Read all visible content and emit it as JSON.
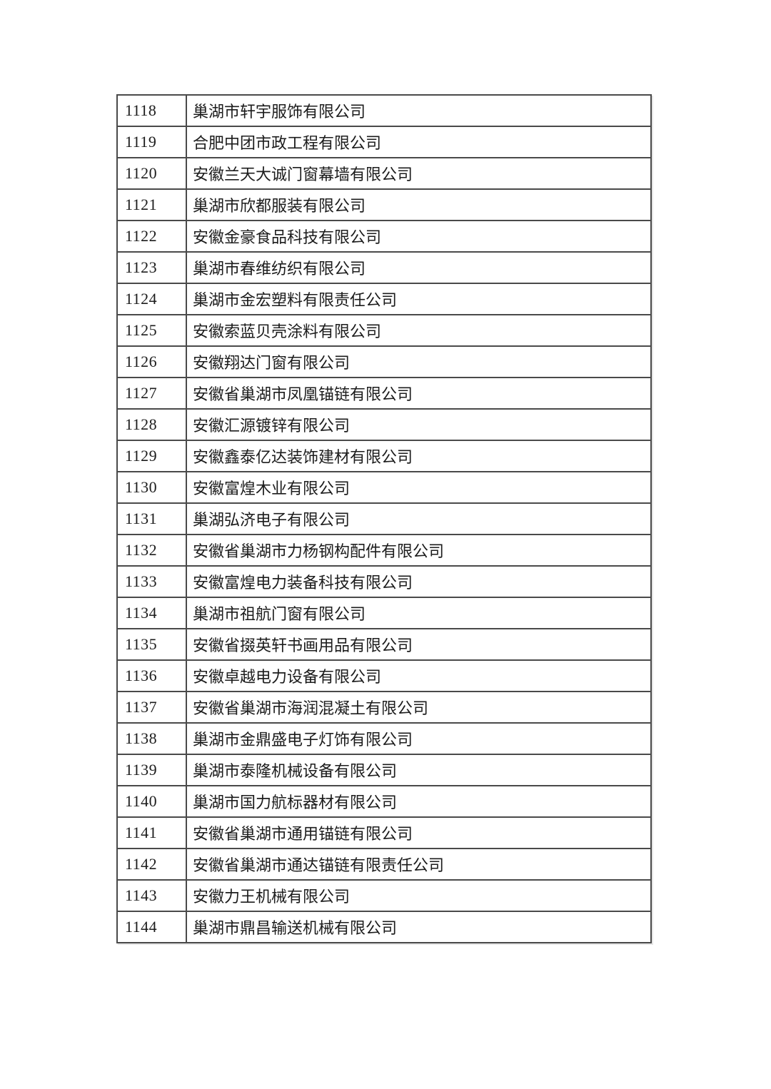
{
  "page": {
    "background": "#ffffff"
  },
  "table": {
    "border_color": "#4a4a4a",
    "text_color": "#1c1c1c",
    "rows": [
      {
        "no": "1118",
        "company": "巢湖市轩宇服饰有限公司"
      },
      {
        "no": "1119",
        "company": "合肥中团市政工程有限公司"
      },
      {
        "no": "1120",
        "company": "安徽兰天大诚门窗幕墙有限公司"
      },
      {
        "no": "1121",
        "company": "巢湖市欣都服装有限公司"
      },
      {
        "no": "1122",
        "company": "安徽金豪食品科技有限公司"
      },
      {
        "no": "1123",
        "company": "巢湖市春维纺织有限公司"
      },
      {
        "no": "1124",
        "company": "巢湖市金宏塑料有限责任公司"
      },
      {
        "no": "1125",
        "company": "安徽索蓝贝壳涂料有限公司"
      },
      {
        "no": "1126",
        "company": "安徽翔达门窗有限公司"
      },
      {
        "no": "1127",
        "company": "安徽省巢湖市凤凰锚链有限公司"
      },
      {
        "no": "1128",
        "company": "安徽汇源镀锌有限公司"
      },
      {
        "no": "1129",
        "company": "安徽鑫泰亿达装饰建材有限公司"
      },
      {
        "no": "1130",
        "company": "安徽富煌木业有限公司"
      },
      {
        "no": "1131",
        "company": "巢湖弘济电子有限公司"
      },
      {
        "no": "1132",
        "company": "安徽省巢湖市力杨钢构配件有限公司"
      },
      {
        "no": "1133",
        "company": "安徽富煌电力装备科技有限公司"
      },
      {
        "no": "1134",
        "company": "巢湖市祖航门窗有限公司"
      },
      {
        "no": "1135",
        "company": "安徽省掇英轩书画用品有限公司"
      },
      {
        "no": "1136",
        "company": "安徽卓越电力设备有限公司"
      },
      {
        "no": "1137",
        "company": "安徽省巢湖市海润混凝土有限公司"
      },
      {
        "no": "1138",
        "company": "巢湖市金鼎盛电子灯饰有限公司"
      },
      {
        "no": "1139",
        "company": "巢湖市泰隆机械设备有限公司"
      },
      {
        "no": "1140",
        "company": "巢湖市国力航标器材有限公司"
      },
      {
        "no": "1141",
        "company": "安徽省巢湖市通用锚链有限公司"
      },
      {
        "no": "1142",
        "company": "安徽省巢湖市通达锚链有限责任公司"
      },
      {
        "no": "1143",
        "company": "安徽力王机械有限公司"
      },
      {
        "no": "1144",
        "company": "巢湖市鼎昌输送机械有限公司"
      }
    ]
  }
}
